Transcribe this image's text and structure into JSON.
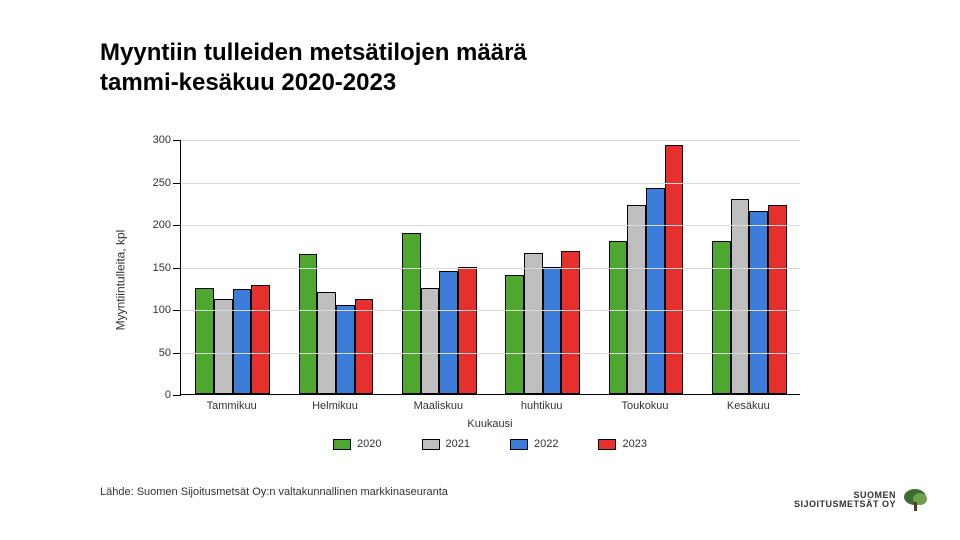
{
  "title_line1": "Myyntiin tulleiden metsätilojen määrä",
  "title_line2": "tammi-kesäkuu 2020-2023",
  "chart": {
    "type": "bar",
    "ylabel": "Myyntiintulleita, kpl",
    "xlabel": "Kuukausi",
    "ylim": [
      0,
      300
    ],
    "ytick_step": 50,
    "yticks": [
      0,
      50,
      100,
      150,
      200,
      250,
      300
    ],
    "categories": [
      "Tammikuu",
      "Helmikuu",
      "Maaliskuu",
      "huhtikuu",
      "Toukokuu",
      "Kesäkuu"
    ],
    "series": [
      {
        "name": "2020",
        "color": "#4ea72e",
        "values": [
          125,
          165,
          190,
          140,
          180,
          180
        ]
      },
      {
        "name": "2021",
        "color": "#bfbfbf",
        "values": [
          112,
          120,
          125,
          166,
          222,
          230
        ]
      },
      {
        "name": "2022",
        "color": "#3b7dd8",
        "values": [
          123,
          105,
          145,
          150,
          242,
          215
        ]
      },
      {
        "name": "2023",
        "color": "#e6302e",
        "values": [
          128,
          112,
          150,
          168,
          293,
          222
        ]
      }
    ],
    "background_color": "#ffffff",
    "grid_color": "#d9d9d9",
    "axis_color": "#000000",
    "bar_border": "#000000",
    "bar_group_width": 0.72,
    "label_fontsize": 12,
    "tick_fontsize": 11
  },
  "legend_labels": [
    "2020",
    "2021",
    "2022",
    "2023"
  ],
  "source": "Lähde: Suomen Sijoitusmetsät Oy:n valtakunnallinen markkinaseuranta",
  "logo": {
    "line1": "SUOMEN",
    "line2": "SIJOITUSMETSÄT OY"
  }
}
